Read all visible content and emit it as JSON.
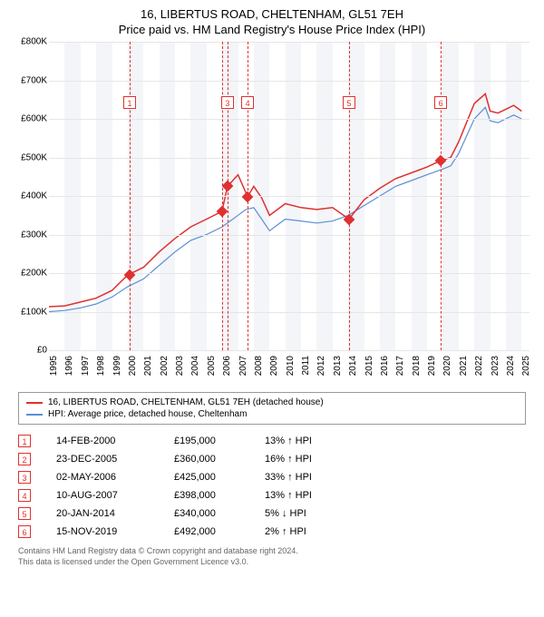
{
  "title": {
    "main": "16, LIBERTUS ROAD, CHELTENHAM, GL51 7EH",
    "sub": "Price paid vs. HM Land Registry's House Price Index (HPI)"
  },
  "chart": {
    "type": "line",
    "background_color": "#ffffff",
    "band_color": "#f3f5f8",
    "grid_color": "#e6e6e6",
    "xlim": [
      1995,
      2025.5
    ],
    "ylim": [
      0,
      800000
    ],
    "ytick_step": 100000,
    "y_labels": [
      "£0",
      "£100K",
      "£200K",
      "£300K",
      "£400K",
      "£500K",
      "£600K",
      "£700K",
      "£800K"
    ],
    "x_ticks": [
      1995,
      1996,
      1997,
      1998,
      1999,
      2000,
      2001,
      2002,
      2003,
      2004,
      2005,
      2006,
      2007,
      2008,
      2009,
      2010,
      2011,
      2012,
      2013,
      2014,
      2015,
      2016,
      2017,
      2018,
      2019,
      2020,
      2021,
      2022,
      2023,
      2024,
      2025
    ],
    "series_red": {
      "label": "16, LIBERTUS ROAD, CHELTENHAM, GL51 7EH (detached house)",
      "color": "#e03030",
      "width": 1.5,
      "points": [
        [
          1995,
          113000
        ],
        [
          1996,
          115000
        ],
        [
          1997,
          125000
        ],
        [
          1998,
          135000
        ],
        [
          1999,
          155000
        ],
        [
          2000,
          195000
        ],
        [
          2001,
          215000
        ],
        [
          2002,
          255000
        ],
        [
          2003,
          290000
        ],
        [
          2004,
          320000
        ],
        [
          2005,
          340000
        ],
        [
          2005.98,
          360000
        ],
        [
          2006.33,
          425000
        ],
        [
          2007,
          455000
        ],
        [
          2007.61,
          398000
        ],
        [
          2008,
          425000
        ],
        [
          2008.5,
          395000
        ],
        [
          2009,
          350000
        ],
        [
          2009.5,
          365000
        ],
        [
          2010,
          380000
        ],
        [
          2011,
          370000
        ],
        [
          2012,
          365000
        ],
        [
          2013,
          370000
        ],
        [
          2014.05,
          340000
        ],
        [
          2015,
          390000
        ],
        [
          2016,
          420000
        ],
        [
          2017,
          445000
        ],
        [
          2018,
          460000
        ],
        [
          2019,
          475000
        ],
        [
          2019.87,
          492000
        ],
        [
          2020.5,
          500000
        ],
        [
          2021,
          540000
        ],
        [
          2022,
          640000
        ],
        [
          2022.7,
          665000
        ],
        [
          2023,
          620000
        ],
        [
          2023.5,
          615000
        ],
        [
          2024,
          625000
        ],
        [
          2024.5,
          635000
        ],
        [
          2025,
          620000
        ]
      ]
    },
    "series_blue": {
      "label": "HPI: Average price, detached house, Cheltenham",
      "color": "#5b8fd6",
      "width": 1.2,
      "points": [
        [
          1995,
          100000
        ],
        [
          1996,
          103000
        ],
        [
          1997,
          110000
        ],
        [
          1998,
          120000
        ],
        [
          1999,
          138000
        ],
        [
          2000,
          165000
        ],
        [
          2001,
          185000
        ],
        [
          2002,
          220000
        ],
        [
          2003,
          255000
        ],
        [
          2004,
          285000
        ],
        [
          2005,
          300000
        ],
        [
          2006,
          320000
        ],
        [
          2007,
          350000
        ],
        [
          2007.5,
          365000
        ],
        [
          2008,
          370000
        ],
        [
          2008.5,
          340000
        ],
        [
          2009,
          310000
        ],
        [
          2009.5,
          325000
        ],
        [
          2010,
          340000
        ],
        [
          2011,
          335000
        ],
        [
          2012,
          330000
        ],
        [
          2013,
          335000
        ],
        [
          2014,
          350000
        ],
        [
          2015,
          375000
        ],
        [
          2016,
          400000
        ],
        [
          2017,
          425000
        ],
        [
          2018,
          440000
        ],
        [
          2019,
          455000
        ],
        [
          2020,
          470000
        ],
        [
          2020.5,
          478000
        ],
        [
          2021,
          510000
        ],
        [
          2022,
          600000
        ],
        [
          2022.7,
          630000
        ],
        [
          2023,
          595000
        ],
        [
          2023.5,
          590000
        ],
        [
          2024,
          600000
        ],
        [
          2024.5,
          610000
        ],
        [
          2025,
          600000
        ]
      ]
    },
    "event_lines": [
      {
        "n": "1",
        "x": 2000.12,
        "label_top": 60
      },
      {
        "n": "2",
        "x": 2005.98,
        "label_top": 60,
        "hide_label": true
      },
      {
        "n": "3",
        "x": 2006.33,
        "label_top": 60
      },
      {
        "n": "4",
        "x": 2007.61,
        "label_top": 60
      },
      {
        "n": "5",
        "x": 2014.05,
        "label_top": 60
      },
      {
        "n": "6",
        "x": 2019.87,
        "label_top": 60
      }
    ],
    "markers": [
      {
        "x": 2000.12,
        "y": 195000
      },
      {
        "x": 2005.98,
        "y": 360000
      },
      {
        "x": 2006.33,
        "y": 425000
      },
      {
        "x": 2007.61,
        "y": 398000
      },
      {
        "x": 2014.05,
        "y": 340000
      },
      {
        "x": 2019.87,
        "y": 492000
      }
    ]
  },
  "legend": [
    {
      "color": "#e03030",
      "text": "16, LIBERTUS ROAD, CHELTENHAM, GL51 7EH (detached house)"
    },
    {
      "color": "#5b8fd6",
      "text": "HPI: Average price, detached house, Cheltenham"
    }
  ],
  "events": [
    {
      "n": "1",
      "date": "14-FEB-2000",
      "price": "£195,000",
      "pct": "13% ↑ HPI"
    },
    {
      "n": "2",
      "date": "23-DEC-2005",
      "price": "£360,000",
      "pct": "16% ↑ HPI"
    },
    {
      "n": "3",
      "date": "02-MAY-2006",
      "price": "£425,000",
      "pct": "33% ↑ HPI"
    },
    {
      "n": "4",
      "date": "10-AUG-2007",
      "price": "£398,000",
      "pct": "13% ↑ HPI"
    },
    {
      "n": "5",
      "date": "20-JAN-2014",
      "price": "£340,000",
      "pct": "5% ↓ HPI"
    },
    {
      "n": "6",
      "date": "15-NOV-2019",
      "price": "£492,000",
      "pct": "2% ↑ HPI"
    }
  ],
  "footer": {
    "line1": "Contains HM Land Registry data © Crown copyright and database right 2024.",
    "line2": "This data is licensed under the Open Government Licence v3.0."
  }
}
